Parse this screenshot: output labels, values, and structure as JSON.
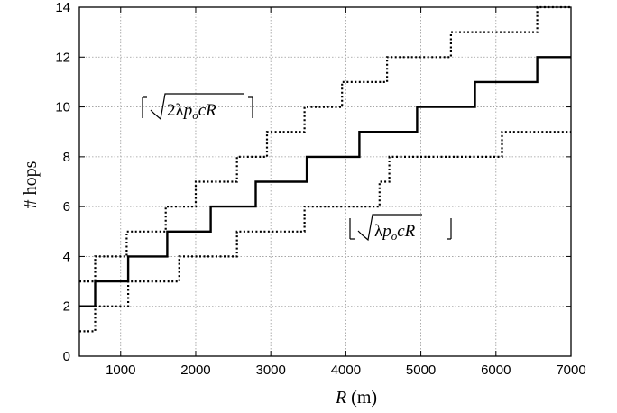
{
  "chart_data": {
    "type": "line",
    "title": "",
    "xlabel": "R (m)",
    "ylabel": "# hops",
    "xlim": [
      450,
      7000
    ],
    "ylim": [
      0,
      14
    ],
    "xticks": [
      1000,
      2000,
      3000,
      4000,
      5000,
      6000,
      7000
    ],
    "yticks": [
      0,
      2,
      4,
      6,
      8,
      10,
      12,
      14
    ],
    "grid": true,
    "legend": "none",
    "series": [
      {
        "style": "solid",
        "color": "#000000",
        "points": [
          [
            450,
            2
          ],
          [
            660,
            2
          ],
          [
            660,
            3
          ],
          [
            1100,
            3
          ],
          [
            1100,
            4
          ],
          [
            1620,
            4
          ],
          [
            1620,
            5
          ],
          [
            2200,
            5
          ],
          [
            2200,
            6
          ],
          [
            2800,
            6
          ],
          [
            2800,
            7
          ],
          [
            3480,
            7
          ],
          [
            3480,
            8
          ],
          [
            4180,
            8
          ],
          [
            4180,
            9
          ],
          [
            4950,
            9
          ],
          [
            4950,
            10
          ],
          [
            5720,
            10
          ],
          [
            5720,
            11
          ],
          [
            6550,
            11
          ],
          [
            6550,
            12
          ],
          [
            7000,
            12
          ]
        ]
      },
      {
        "style": "dotted",
        "color": "#000000",
        "points": [
          [
            450,
            3
          ],
          [
            660,
            3
          ],
          [
            660,
            4
          ],
          [
            1080,
            4
          ],
          [
            1080,
            5
          ],
          [
            1600,
            5
          ],
          [
            1600,
            6
          ],
          [
            2000,
            6
          ],
          [
            2000,
            7
          ],
          [
            2550,
            7
          ],
          [
            2550,
            8
          ],
          [
            2950,
            8
          ],
          [
            2950,
            9
          ],
          [
            3450,
            9
          ],
          [
            3450,
            10
          ],
          [
            3950,
            10
          ],
          [
            3950,
            11
          ],
          [
            4550,
            11
          ],
          [
            4550,
            12
          ],
          [
            5400,
            12
          ],
          [
            5400,
            13
          ],
          [
            6550,
            13
          ],
          [
            6550,
            14
          ],
          [
            7000,
            14
          ]
        ]
      },
      {
        "style": "dotted",
        "color": "#000000",
        "points": [
          [
            450,
            1
          ],
          [
            660,
            1
          ],
          [
            660,
            2
          ],
          [
            1100,
            2
          ],
          [
            1100,
            3
          ],
          [
            1780,
            3
          ],
          [
            1780,
            4
          ],
          [
            2550,
            4
          ],
          [
            2550,
            5
          ],
          [
            3450,
            5
          ],
          [
            3450,
            6
          ],
          [
            4450,
            6
          ],
          [
            4450,
            7
          ],
          [
            4580,
            7
          ],
          [
            4580,
            8
          ],
          [
            6080,
            8
          ],
          [
            6080,
            9
          ],
          [
            7000,
            9
          ]
        ]
      }
    ],
    "annotations": [
      {
        "text": "⌈√2λp_o cR⌉",
        "x": 1350,
        "y": 10.0
      },
      {
        "text": "⌊√λp_o cR⌋",
        "x": 4450,
        "y": 4.6
      }
    ]
  }
}
